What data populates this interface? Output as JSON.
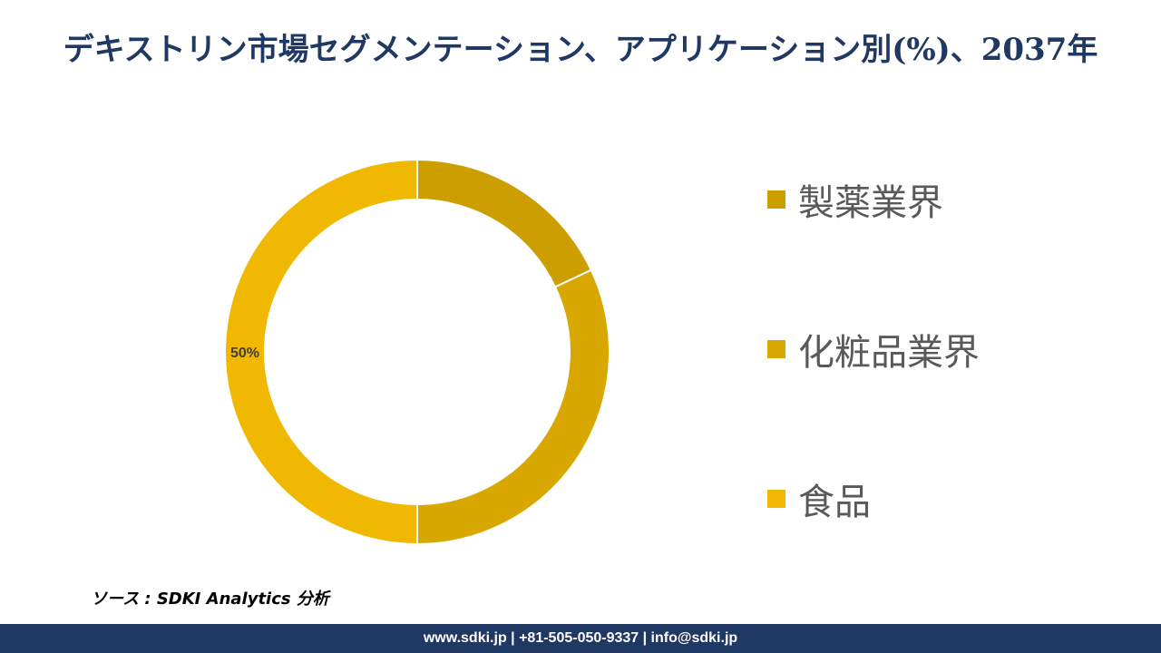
{
  "title": "デキストリン市場セグメンテーション、アプリケーション別(%)、2037年",
  "source": "ソース : SDKI Analytics 分析",
  "footer": "www.sdki.jp | +81-505-050-9337 | info@sdki.jp",
  "colors": {
    "title": "#1f3864",
    "footer_bg": "#1f3864",
    "legend_text": "#595959"
  },
  "chart_data": {
    "type": "pie",
    "donut": true,
    "categories": [
      "製薬業界",
      "化粧品業界",
      "食品"
    ],
    "values": [
      18,
      32,
      50
    ],
    "unit": "%",
    "colors": [
      "#cc9e00",
      "#d9a800",
      "#f0b800"
    ],
    "data_labels": [
      "",
      "",
      "50%"
    ],
    "legend_position": "right"
  }
}
